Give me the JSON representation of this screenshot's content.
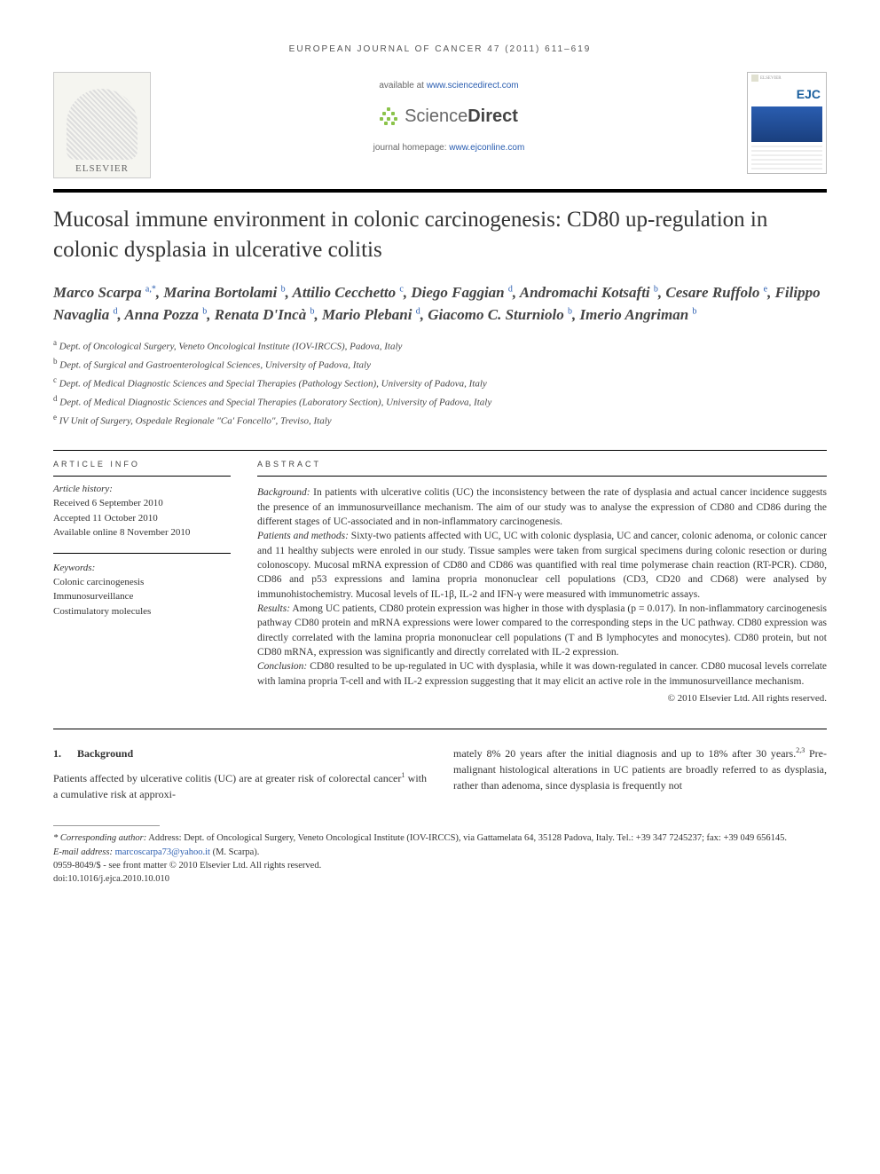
{
  "running_head": "EUROPEAN JOURNAL OF CANCER 47 (2011) 611–619",
  "banner": {
    "elsevier": "ELSEVIER",
    "available_prefix": "available at ",
    "available_url": "www.sciencedirect.com",
    "sd_brand_a": "Science",
    "sd_brand_b": "Direct",
    "homepage_prefix": "journal homepage: ",
    "homepage_url": "www.ejconline.com",
    "cover_brand": "EJC"
  },
  "title": "Mucosal immune environment in colonic carcinogenesis: CD80 up-regulation in colonic dysplasia in ulcerative colitis",
  "authors_html": "Marco Scarpa <sup>a,*</sup>, Marina Bortolami <sup>b</sup>, Attilio Cecchetto <sup>c</sup>, Diego Faggian <sup>d</sup>, Andromachi Kotsafti <sup>b</sup>, Cesare Ruffolo <sup>e</sup>, Filippo Navaglia <sup>d</sup>, Anna Pozza <sup>b</sup>, Renata D'Incà <sup>b</sup>, Mario Plebani <sup>d</sup>, Giacomo C. Sturniolo <sup>b</sup>, Imerio Angriman <sup>b</sup>",
  "affiliations": [
    {
      "sup": "a",
      "text": "Dept. of Oncological Surgery, Veneto Oncological Institute (IOV-IRCCS), Padova, Italy"
    },
    {
      "sup": "b",
      "text": "Dept. of Surgical and Gastroenterological Sciences, University of Padova, Italy"
    },
    {
      "sup": "c",
      "text": "Dept. of Medical Diagnostic Sciences and Special Therapies (Pathology Section), University of Padova, Italy"
    },
    {
      "sup": "d",
      "text": "Dept. of Medical Diagnostic Sciences and Special Therapies (Laboratory Section), University of Padova, Italy"
    },
    {
      "sup": "e",
      "text": "IV Unit of Surgery, Ospedale Regionale \"Ca' Foncello\", Treviso, Italy"
    }
  ],
  "article_info": {
    "header": "ARTICLE INFO",
    "history_label": "Article history:",
    "received": "Received 6 September 2010",
    "accepted": "Accepted 11 October 2010",
    "online": "Available online 8 November 2010",
    "keywords_label": "Keywords:",
    "keywords": [
      "Colonic carcinogenesis",
      "Immunosurveillance",
      "Costimulatory molecules"
    ]
  },
  "abstract": {
    "header": "ABSTRACT",
    "background_label": "Background:",
    "background": " In patients with ulcerative colitis (UC) the inconsistency between the rate of dysplasia and actual cancer incidence suggests the presence of an immunosurveillance mechanism. The aim of our study was to analyse the expression of CD80 and CD86 during the different stages of UC-associated and in non-inflammatory carcinogenesis.",
    "methods_label": "Patients and methods:",
    "methods": " Sixty-two patients affected with UC, UC with colonic dysplasia, UC and cancer, colonic adenoma, or colonic cancer and 11 healthy subjects were enroled in our study. Tissue samples were taken from surgical specimens during colonic resection or during colonoscopy. Mucosal mRNA expression of CD80 and CD86 was quantified with real time polymerase chain reaction (RT-PCR). CD80, CD86 and p53 expressions and lamina propria mononuclear cell populations (CD3, CD20 and CD68) were analysed by immunohistochemistry. Mucosal levels of IL-1β, IL-2 and IFN-γ were measured with immunometric assays.",
    "results_label": "Results:",
    "results": " Among UC patients, CD80 protein expression was higher in those with dysplasia (p = 0.017). In non-inflammatory carcinogenesis pathway CD80 protein and mRNA expressions were lower compared to the corresponding steps in the UC pathway. CD80 expression was directly correlated with the lamina propria mononuclear cell populations (T and B lymphocytes and monocytes). CD80 protein, but not CD80 mRNA, expression was significantly and directly correlated with IL-2 expression.",
    "conclusion_label": "Conclusion:",
    "conclusion": " CD80 resulted to be up-regulated in UC with dysplasia, while it was down-regulated in cancer. CD80 mucosal levels correlate with lamina propria T-cell and with IL-2 expression suggesting that it may elicit an active role in the immunosurveillance mechanism.",
    "copyright": "© 2010 Elsevier Ltd. All rights reserved."
  },
  "body": {
    "section_num": "1.",
    "section_title": "Background",
    "col1": "Patients affected by ulcerative colitis (UC) are at greater risk of colorectal cancer¹ with a cumulative risk at approxi-",
    "col2": "mately 8% 20 years after the initial diagnosis and up to 18% after 30 years.²,³ Pre-malignant histological alterations in UC patients are broadly referred to as dysplasia, rather than adenoma, since dysplasia is frequently not"
  },
  "footnotes": {
    "corr_label": "* Corresponding author:",
    "corr_text": " Address: Dept. of Oncological Surgery, Veneto Oncological Institute (IOV-IRCCS), via Gattamelata 64, 35128 Padova, Italy. Tel.: +39 347 7245237; fax: +39 049 656145.",
    "email_label": "E-mail address: ",
    "email": "marcoscarpa73@yahoo.it",
    "email_suffix": " (M. Scarpa).",
    "issn": "0959-8049/$ - see front matter © 2010 Elsevier Ltd. All rights reserved.",
    "doi": "doi:10.1016/j.ejca.2010.10.010"
  },
  "colors": {
    "link": "#2a5db0",
    "text": "#333333",
    "rule": "#000000",
    "sd_green": "#8bc34a"
  }
}
